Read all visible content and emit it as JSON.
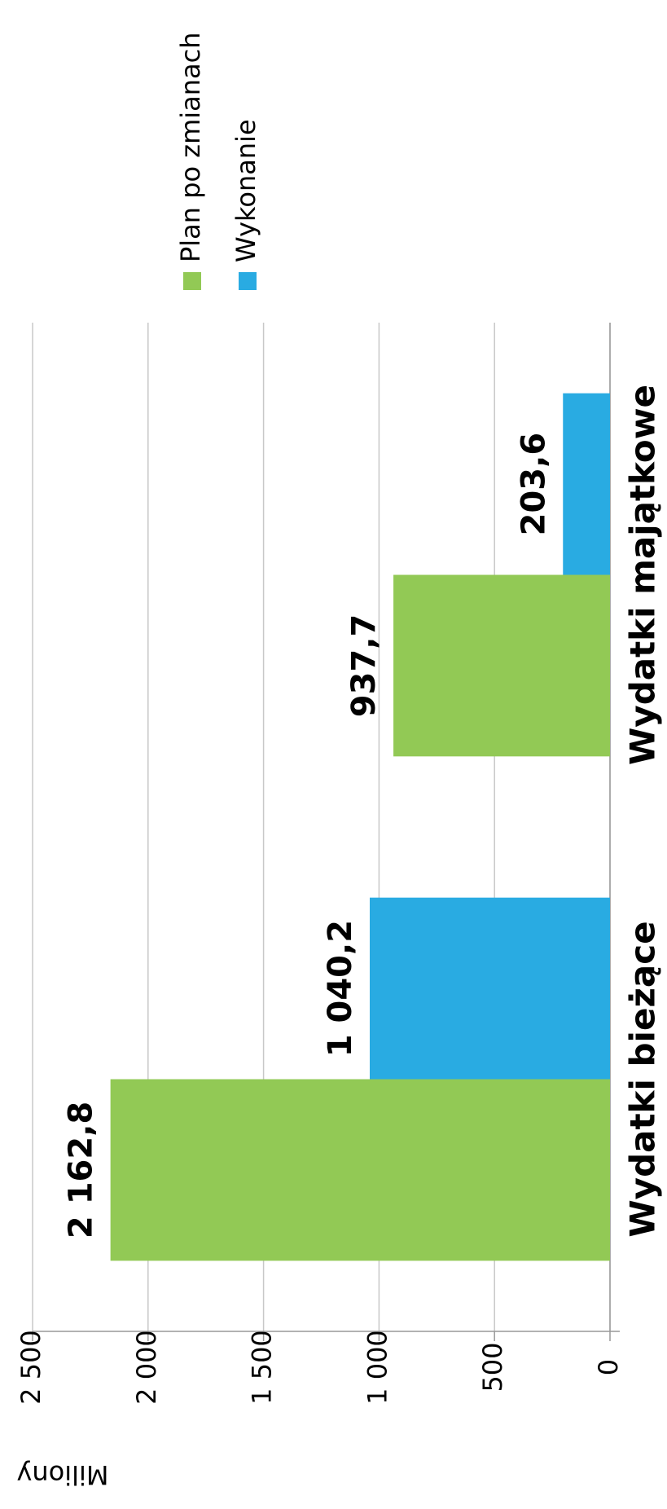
{
  "chart_data": {
    "type": "bar",
    "categories": [
      "Wydatki bieżące",
      "Wydatki majątkowe"
    ],
    "series": [
      {
        "name": "Plan po zmianach",
        "color": "#92c955",
        "values": [
          2162.8,
          937.7
        ],
        "value_labels": [
          "2 162,8",
          "937,7"
        ]
      },
      {
        "name": "Wykonanie",
        "color": "#29abe2",
        "values": [
          1040.2,
          203.6
        ],
        "value_labels": [
          "1 040,2",
          "203,6"
        ]
      }
    ],
    "y_label": "Miliony",
    "ylim": [
      0,
      2500
    ],
    "yticks": [
      0,
      {
        "value": 500,
        "label": "500"
      },
      {
        "value": 1000,
        "label": "1 000"
      },
      {
        "value": 1500,
        "label": "1 500"
      },
      {
        "value": 2000,
        "label": "2 000"
      },
      {
        "value": 2500,
        "label": "2 500"
      }
    ],
    "grid": true,
    "legend": "right",
    "orientation": "rotated-90-ccw"
  }
}
